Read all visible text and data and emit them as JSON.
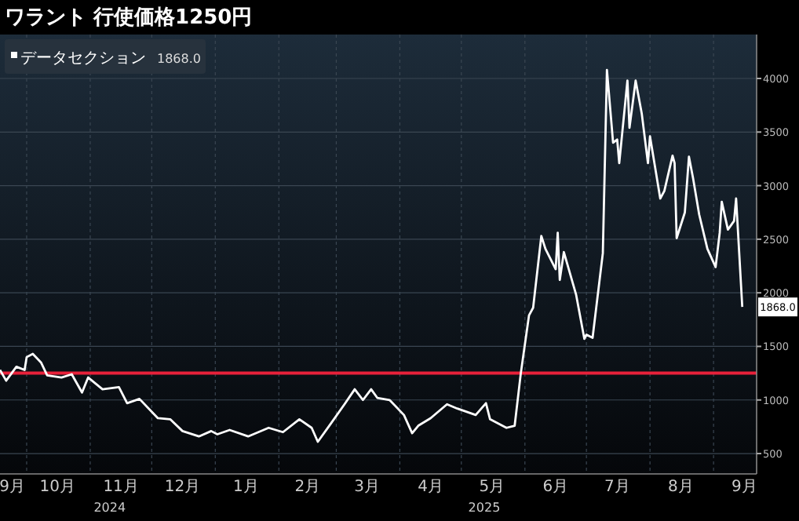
{
  "chart_data": {
    "type": "line",
    "title": "ワラント 行使価格1250円",
    "annotations": [
      "2024",
      "2025"
    ],
    "xlim": [
      "2024-09-18",
      "2025-09-22"
    ],
    "xticks": [
      {
        "value": "2024-09-24",
        "label": "9月"
      },
      {
        "value": "2024-10-01",
        "label": null
      },
      {
        "value": "2024-10-16",
        "label": "10月"
      },
      {
        "value": "2024-11-01",
        "label": null
      },
      {
        "value": "2024-11-16",
        "label": "11月"
      },
      {
        "value": "2024-12-01",
        "label": null
      },
      {
        "value": "2024-12-16",
        "label": "12月"
      },
      {
        "value": "2025-01-01",
        "label": null
      },
      {
        "value": "2025-01-16",
        "label": "1月"
      },
      {
        "value": "2025-02-01",
        "label": null
      },
      {
        "value": "2025-02-15",
        "label": "2月"
      },
      {
        "value": "2025-03-01",
        "label": null
      },
      {
        "value": "2025-03-16",
        "label": "3月"
      },
      {
        "value": "2025-04-01",
        "label": null
      },
      {
        "value": "2025-04-16",
        "label": "4月"
      },
      {
        "value": "2025-05-01",
        "label": null
      },
      {
        "value": "2025-05-16",
        "label": "5月"
      },
      {
        "value": "2025-06-01",
        "label": null
      },
      {
        "value": "2025-06-16",
        "label": "6月"
      },
      {
        "value": "2025-07-01",
        "label": null
      },
      {
        "value": "2025-07-16",
        "label": "7月"
      },
      {
        "value": "2025-08-01",
        "label": null
      },
      {
        "value": "2025-08-16",
        "label": "8月"
      },
      {
        "value": "2025-09-01",
        "label": null
      },
      {
        "value": "2025-09-16",
        "label": "9月"
      }
    ],
    "ylim": [
      310,
      4410
    ],
    "yticks": [
      500,
      1000,
      1500,
      2000,
      2500,
      3000,
      3500,
      4000
    ],
    "grid": true,
    "legend": "top left",
    "ref_lines": [
      {
        "axis": "y",
        "value": 1250,
        "color": "#e8213a"
      }
    ],
    "x": [
      "2024-09-18",
      "2024-09-21",
      "2024-09-26",
      "2024-09-30",
      "2024-10-01",
      "2024-10-04",
      "2024-10-08",
      "2024-10-11",
      "2024-10-18",
      "2024-10-23",
      "2024-10-28",
      "2024-10-31",
      "2024-11-07",
      "2024-11-15",
      "2024-11-19",
      "2024-11-25",
      "2024-12-04",
      "2024-12-10",
      "2024-12-16",
      "2024-12-24",
      "2024-12-30",
      "2025-01-02",
      "2025-01-08",
      "2025-01-17",
      "2025-01-27",
      "2025-02-03",
      "2025-02-11",
      "2025-02-17",
      "2025-02-20",
      "2025-02-26",
      "2025-03-05",
      "2025-03-10",
      "2025-03-14",
      "2025-03-18",
      "2025-03-21",
      "2025-03-27",
      "2025-04-03",
      "2025-04-07",
      "2025-04-10",
      "2025-04-16",
      "2025-04-24",
      "2025-04-29",
      "2025-05-08",
      "2025-05-13",
      "2025-05-15",
      "2025-05-23",
      "2025-05-27",
      "2025-05-30",
      "2025-06-03",
      "2025-06-05",
      "2025-06-09",
      "2025-06-11",
      "2025-06-16",
      "2025-06-17",
      "2025-06-18",
      "2025-06-20",
      "2025-06-26",
      "2025-06-30",
      "2025-07-01",
      "2025-07-04",
      "2025-07-09",
      "2025-07-11",
      "2025-07-14",
      "2025-07-16",
      "2025-07-17",
      "2025-07-21",
      "2025-07-22",
      "2025-07-25",
      "2025-07-28",
      "2025-07-31",
      "2025-08-01",
      "2025-08-06",
      "2025-08-08",
      "2025-08-12",
      "2025-08-13",
      "2025-08-14",
      "2025-08-18",
      "2025-08-20",
      "2025-08-22",
      "2025-08-25",
      "2025-08-29",
      "2025-09-02",
      "2025-09-04",
      "2025-09-05",
      "2025-09-08",
      "2025-09-11",
      "2025-09-12",
      "2025-09-15"
    ],
    "series": [
      {
        "name": "データセクション",
        "color": "#ffffff",
        "line_style": "solid",
        "marker": "none",
        "values": [
          1280,
          1180,
          1310,
          1280,
          1400,
          1430,
          1350,
          1230,
          1210,
          1240,
          1070,
          1210,
          1100,
          1120,
          970,
          1010,
          830,
          820,
          710,
          660,
          710,
          680,
          720,
          660,
          740,
          700,
          820,
          740,
          610,
          770,
          960,
          1100,
          1000,
          1100,
          1020,
          1000,
          860,
          690,
          760,
          830,
          960,
          920,
          860,
          970,
          820,
          740,
          760,
          1250,
          1790,
          1860,
          2530,
          2410,
          2220,
          2560,
          2120,
          2380,
          1980,
          1570,
          1610,
          1580,
          2370,
          4080,
          3400,
          3430,
          3210,
          3980,
          3540,
          3980,
          3670,
          3210,
          3460,
          2880,
          2950,
          3280,
          3210,
          2510,
          2750,
          3270,
          3070,
          2730,
          2410,
          2240,
          2560,
          2850,
          2590,
          2670,
          2880,
          1868.0
        ],
        "value_labels": [
          null,
          null,
          null,
          null,
          null,
          null,
          null,
          null,
          null,
          null,
          null,
          null,
          null,
          null,
          null,
          null,
          null,
          null,
          null,
          null,
          null,
          null,
          null,
          null,
          null,
          null,
          null,
          null,
          null,
          null,
          null,
          null,
          null,
          null,
          null,
          null,
          null,
          null,
          null,
          null,
          null,
          null,
          null,
          null,
          null,
          null,
          null,
          null,
          null,
          null,
          null,
          null,
          null,
          null,
          null,
          null,
          null,
          null,
          null,
          null,
          null,
          null,
          null,
          null,
          null,
          null,
          null,
          null,
          null,
          null,
          null,
          null,
          null,
          null,
          null,
          null,
          null,
          null,
          null,
          null,
          null,
          null,
          null,
          null,
          null,
          null,
          null,
          "1868.0"
        ]
      }
    ]
  }
}
